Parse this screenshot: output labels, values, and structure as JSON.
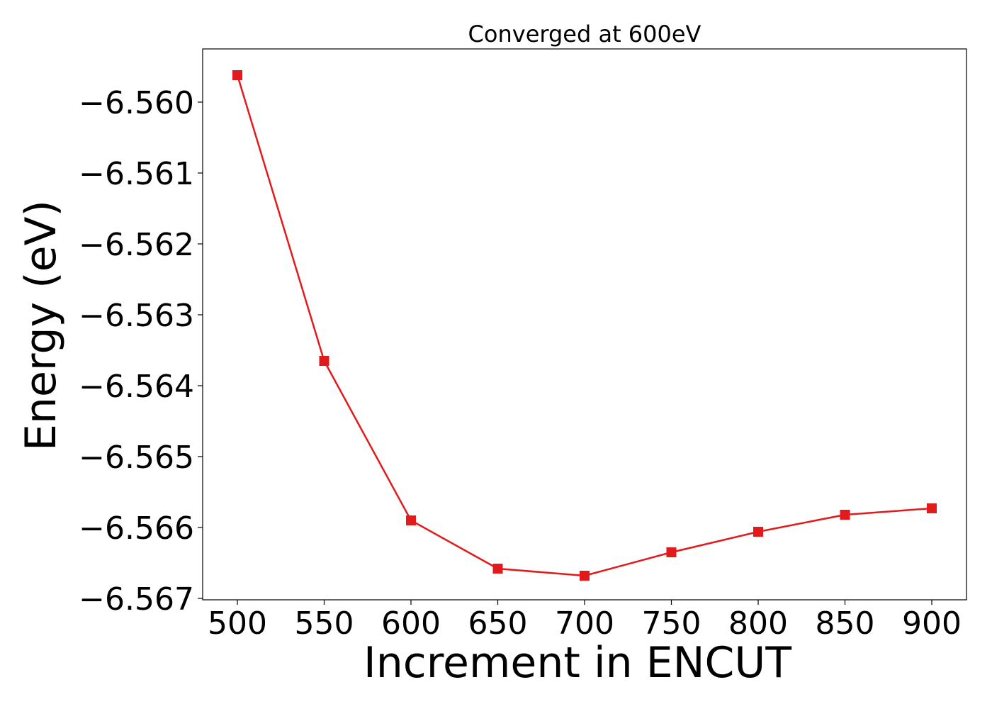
{
  "chart_data": {
    "type": "line",
    "title": "Converged at 600eV",
    "xlabel": "Increment in ENCUT",
    "ylabel": "Energy (eV)",
    "x": [
      500,
      550,
      600,
      650,
      700,
      750,
      800,
      850,
      900
    ],
    "series": [
      {
        "values": [
          -6.55962,
          -6.56365,
          -6.5659,
          -6.56658,
          -6.56668,
          -6.56635,
          -6.56606,
          -6.56582,
          -6.56573
        ],
        "color": "#e31a1c",
        "marker": "square"
      }
    ],
    "xticks": [
      "500",
      "550",
      "600",
      "650",
      "700",
      "750",
      "800",
      "850",
      "900"
    ],
    "yticks": [
      "−6.560",
      "−6.561",
      "−6.562",
      "−6.563",
      "−6.564",
      "−6.565",
      "−6.566",
      "−6.567"
    ],
    "xtick_values": [
      500,
      550,
      600,
      650,
      700,
      750,
      800,
      850,
      900
    ],
    "ytick_values": [
      -6.56,
      -6.561,
      -6.562,
      -6.563,
      -6.564,
      -6.565,
      -6.566,
      -6.567
    ],
    "xlim": [
      480,
      920
    ],
    "ylim": [
      -6.56702,
      -6.55925
    ],
    "grid": false,
    "legend": "none"
  }
}
